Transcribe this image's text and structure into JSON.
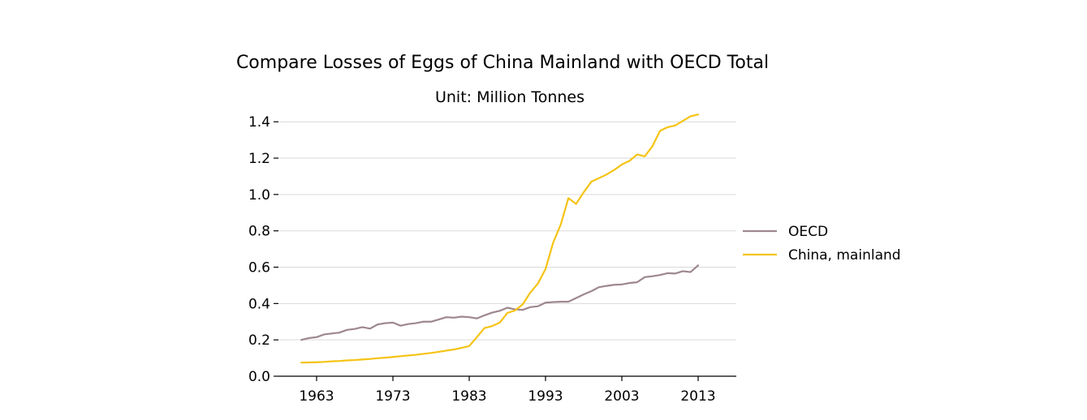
{
  "chart_data": {
    "type": "line",
    "title": "Compare Losses of Eggs of China Mainland with OECD Total",
    "subtitle": "Unit: Million Tonnes",
    "xlabel": "",
    "ylabel": "",
    "xlim": [
      1958,
      2018
    ],
    "ylim": [
      0,
      1.45
    ],
    "xticks": [
      1963,
      1973,
      1983,
      1993,
      2003,
      2013
    ],
    "yticks": [
      0.0,
      0.2,
      0.4,
      0.6,
      0.8,
      1.0,
      1.2,
      1.4
    ],
    "ytick_labels": [
      "0.0",
      "0.2",
      "0.4",
      "0.6",
      "0.8",
      "1.0",
      "1.2",
      "1.4"
    ],
    "grid": "horizontal",
    "legend_position": "right",
    "x": [
      1961,
      1962,
      1963,
      1964,
      1965,
      1966,
      1967,
      1968,
      1969,
      1970,
      1971,
      1972,
      1973,
      1974,
      1975,
      1976,
      1977,
      1978,
      1979,
      1980,
      1981,
      1982,
      1983,
      1984,
      1985,
      1986,
      1987,
      1988,
      1989,
      1990,
      1991,
      1992,
      1993,
      1994,
      1995,
      1996,
      1997,
      1998,
      1999,
      2000,
      2001,
      2002,
      2003,
      2004,
      2005,
      2006,
      2007,
      2008,
      2009,
      2010,
      2011,
      2012,
      2013
    ],
    "series": [
      {
        "name": "OECD",
        "color": "#9e8790",
        "values": [
          0.2,
          0.21,
          0.215,
          0.23,
          0.235,
          0.24,
          0.255,
          0.26,
          0.27,
          0.262,
          0.285,
          0.292,
          0.295,
          0.278,
          0.287,
          0.292,
          0.3,
          0.3,
          0.312,
          0.325,
          0.322,
          0.328,
          0.325,
          0.318,
          0.335,
          0.35,
          0.36,
          0.377,
          0.368,
          0.365,
          0.38,
          0.385,
          0.405,
          0.408,
          0.41,
          0.41,
          0.43,
          0.45,
          0.468,
          0.49,
          0.497,
          0.503,
          0.505,
          0.513,
          0.517,
          0.545,
          0.55,
          0.557,
          0.567,
          0.565,
          0.578,
          0.573,
          0.61
        ]
      },
      {
        "name": "China, mainland",
        "color": "#f5c314",
        "values": [
          0.075,
          0.076,
          0.077,
          0.079,
          0.082,
          0.084,
          0.087,
          0.089,
          0.092,
          0.095,
          0.099,
          0.102,
          0.106,
          0.11,
          0.114,
          0.118,
          0.123,
          0.128,
          0.134,
          0.141,
          0.147,
          0.156,
          0.166,
          0.215,
          0.265,
          0.276,
          0.295,
          0.348,
          0.362,
          0.395,
          0.46,
          0.51,
          0.59,
          0.735,
          0.835,
          0.98,
          0.948,
          1.012,
          1.07,
          1.09,
          1.11,
          1.135,
          1.165,
          1.185,
          1.22,
          1.21,
          1.265,
          1.35,
          1.37,
          1.38,
          1.405,
          1.43,
          1.44
        ]
      }
    ]
  }
}
